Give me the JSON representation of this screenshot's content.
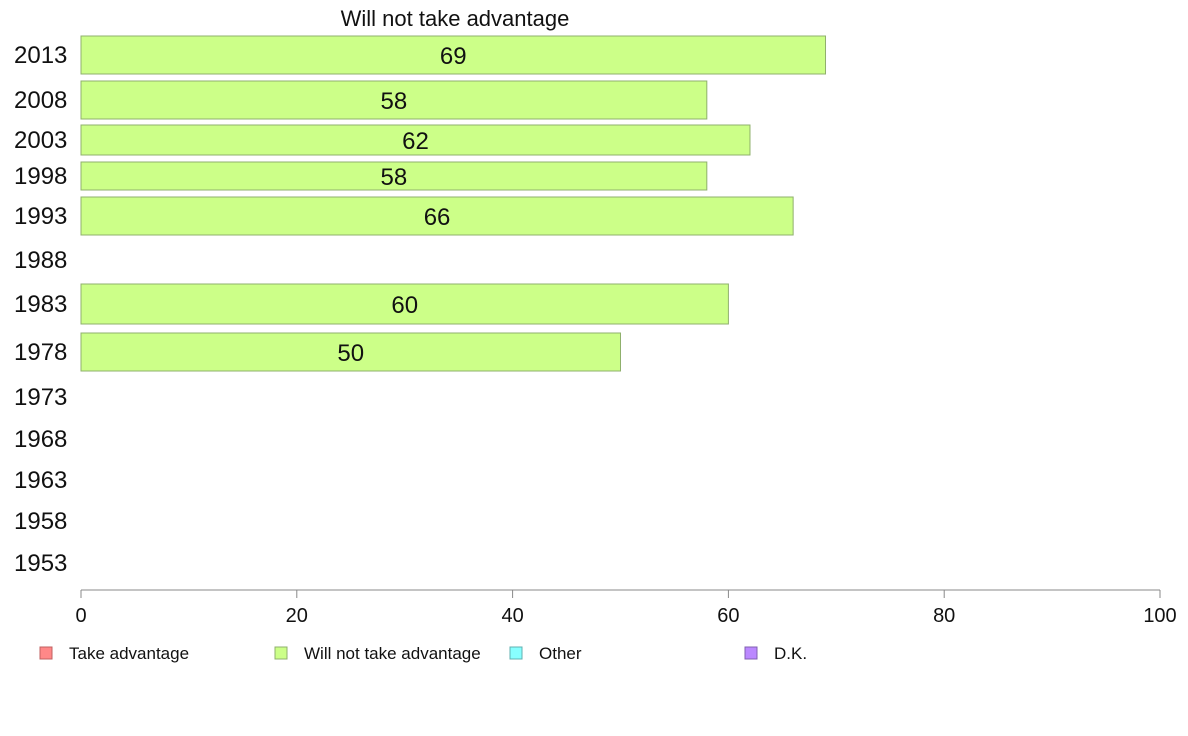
{
  "chart_data": {
    "type": "bar",
    "orientation": "horizontal",
    "title": "Will not take advantage",
    "xlabel": "",
    "ylabel": "",
    "xlim": [
      0,
      100
    ],
    "xticks": [
      0,
      20,
      40,
      60,
      80,
      100
    ],
    "categories": [
      "2013",
      "2008",
      "2003",
      "1998",
      "1993",
      "1988",
      "1983",
      "1978",
      "1973",
      "1968",
      "1963",
      "1958",
      "1953"
    ],
    "series": [
      {
        "name": "Will not take advantage",
        "values": [
          69,
          58,
          62,
          58,
          66,
          null,
          60,
          50,
          null,
          null,
          null,
          null,
          null
        ],
        "color": "#ccff88",
        "stroke": "#8fb06c"
      }
    ],
    "legend": {
      "placement": "bottom",
      "items": [
        {
          "label": "Take advantage",
          "color": "#ff8888",
          "stroke": "#c06060"
        },
        {
          "label": "Will not take advantage",
          "color": "#ccff88",
          "stroke": "#8fb06c"
        },
        {
          "label": "Other",
          "color": "#88ffff",
          "stroke": "#60b0b0"
        },
        {
          "label": "D.K.",
          "color": "#bb88ff",
          "stroke": "#8060b0"
        }
      ]
    },
    "grid": false
  }
}
